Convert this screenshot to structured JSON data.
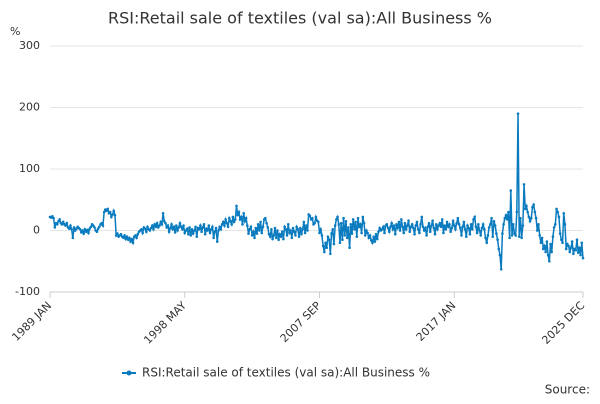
{
  "chart_data": {
    "type": "line",
    "title": "RSI:Retail sale of textiles (val sa):All Business %",
    "y_label": "%",
    "source": "Source:",
    "categories": [
      "1989 JAN",
      null,
      null,
      null,
      null,
      null,
      null,
      null,
      null,
      null,
      null,
      null,
      null,
      null,
      null,
      null,
      null,
      null,
      null,
      null,
      null,
      null,
      null,
      null,
      null,
      null,
      null,
      null,
      null,
      null,
      null,
      null,
      null,
      null,
      null,
      null,
      null,
      null,
      null,
      null,
      null,
      null,
      null,
      null,
      null,
      null,
      null,
      null,
      null,
      null,
      null,
      null,
      null,
      null,
      null,
      null,
      null,
      null,
      null,
      null,
      null,
      null,
      null,
      null,
      null,
      null,
      null,
      null,
      null,
      null,
      null,
      null,
      null,
      null,
      null,
      null,
      null,
      null,
      null,
      null,
      null,
      null,
      null,
      null,
      null,
      null,
      null,
      null,
      null,
      null,
      null,
      null,
      null,
      null,
      null,
      null,
      null,
      null,
      null,
      null,
      null,
      null,
      null,
      null,
      null,
      null,
      null,
      null,
      null,
      null,
      null,
      null,
      "1998 MAY",
      null,
      null,
      null,
      null,
      null,
      null,
      null,
      null,
      null,
      null,
      null,
      null,
      null,
      null,
      null,
      null,
      null,
      null,
      null,
      null,
      null,
      null,
      null,
      null,
      null,
      null,
      null,
      null,
      null,
      null,
      null,
      null,
      null,
      null,
      null,
      null,
      null,
      null,
      null,
      null,
      null,
      null,
      null,
      null,
      null,
      null,
      null,
      null,
      null,
      null,
      null,
      null,
      null,
      null,
      null,
      null,
      null,
      null,
      null,
      null,
      null,
      null,
      null,
      null,
      null,
      null,
      null,
      null,
      null,
      null,
      null,
      null,
      null,
      null,
      null,
      null,
      null,
      null,
      null,
      null,
      null,
      null,
      null,
      null,
      null,
      null,
      null,
      null,
      null,
      null,
      null,
      null,
      null,
      null,
      null,
      null,
      null,
      null,
      null,
      null,
      null,
      null,
      null,
      null,
      null,
      null,
      null,
      null,
      null,
      null,
      null,
      "2007 SEP",
      null,
      null,
      null,
      null,
      null,
      null,
      null,
      null,
      null,
      null,
      null,
      null,
      null,
      null,
      null,
      null,
      null,
      null,
      null,
      null,
      null,
      null,
      null,
      null,
      null,
      null,
      null,
      null,
      null,
      null,
      null,
      null,
      null,
      null,
      null,
      null,
      null,
      null,
      null,
      null,
      null,
      null,
      null,
      null,
      null,
      null,
      null,
      null,
      null,
      null,
      null,
      null,
      null,
      null,
      null,
      null,
      null,
      null,
      null,
      null,
      null,
      null,
      null,
      null,
      null,
      null,
      null,
      null,
      null,
      null,
      null,
      null,
      null,
      null,
      null,
      null,
      null,
      null,
      null,
      null,
      null,
      null,
      null,
      null,
      null,
      null,
      null,
      null,
      null,
      null,
      null,
      null,
      null,
      null,
      null,
      null,
      null,
      null,
      null,
      null,
      null,
      null,
      null,
      null,
      null,
      null,
      null,
      null,
      null,
      null,
      null,
      "2017 JAN",
      null,
      null,
      null,
      null,
      null,
      null,
      null,
      null,
      null,
      null,
      null,
      null,
      null,
      null,
      null,
      null,
      null,
      null,
      null,
      null,
      null,
      null,
      null,
      null,
      null,
      null,
      null,
      null,
      null,
      null,
      null,
      null,
      null,
      null,
      null,
      null,
      null,
      null,
      null,
      null,
      null,
      null,
      null,
      null,
      null,
      null,
      null,
      null,
      null,
      null,
      null,
      null,
      null,
      null,
      null,
      null,
      null,
      null,
      null,
      null,
      null,
      null,
      null,
      null,
      null,
      null,
      null,
      null,
      null,
      null,
      null,
      null,
      null,
      null,
      null,
      null,
      null,
      null,
      null,
      null,
      null,
      null,
      null,
      null,
      null,
      null,
      null,
      null,
      null,
      null,
      null,
      null,
      null,
      null,
      null,
      null,
      null,
      null,
      null,
      null,
      null,
      null,
      null,
      null,
      null,
      null,
      "2025 DEC"
    ],
    "series": [
      {
        "name": "RSI:Retail sale of textiles (val sa):All Business %",
        "color": "#0a7bbf",
        "values": [
          22,
          21,
          23,
          20,
          5,
          12,
          10,
          15,
          18,
          12,
          10,
          14,
          10,
          8,
          12,
          5,
          3,
          8,
          2,
          -12,
          5,
          0,
          3,
          6,
          4,
          2,
          -3,
          0,
          -5,
          2,
          -2,
          1,
          -4,
          3,
          6,
          10,
          8,
          5,
          0,
          -2,
          3,
          6,
          10,
          12,
          8,
          30,
          34,
          32,
          35,
          28,
          30,
          22,
          26,
          32,
          25,
          -8,
          -5,
          -10,
          -8,
          -6,
          -10,
          -12,
          -8,
          -14,
          -10,
          -15,
          -12,
          -18,
          -14,
          -20,
          -10,
          -8,
          -12,
          -6,
          -2,
          0,
          2,
          -4,
          5,
          3,
          -2,
          6,
          2,
          0,
          4,
          8,
          2,
          10,
          6,
          12,
          5,
          8,
          14,
          10,
          28,
          15,
          12,
          5,
          8,
          -2,
          4,
          10,
          2,
          6,
          -3,
          8,
          0,
          5,
          12,
          6,
          2,
          8,
          -4,
          0,
          3,
          -6,
          5,
          -8,
          2,
          -5,
          0,
          6,
          -10,
          4,
          2,
          8,
          -2,
          5,
          10,
          -6,
          3,
          0,
          8,
          -4,
          2,
          6,
          -12,
          -2,
          4,
          -18,
          0,
          6,
          2,
          10,
          14,
          8,
          18,
          12,
          6,
          20,
          15,
          10,
          22,
          14,
          18,
          40,
          25,
          30,
          18,
          22,
          10,
          28,
          15,
          20,
          8,
          -5,
          2,
          6,
          -8,
          -2,
          -12,
          4,
          -5,
          10,
          0,
          14,
          -4,
          6,
          18,
          20,
          12,
          5,
          -6,
          -10,
          2,
          -14,
          -8,
          4,
          -12,
          0,
          -15,
          -6,
          -10,
          -2,
          -14,
          6,
          2,
          -8,
          10,
          -4,
          0,
          -12,
          4,
          -2,
          -8,
          6,
          2,
          -10,
          4,
          -6,
          2,
          14,
          -4,
          8,
          0,
          26,
          24,
          18,
          20,
          10,
          12,
          22,
          16,
          14,
          -4,
          2,
          -8,
          -25,
          -35,
          -20,
          -28,
          -10,
          -15,
          -38,
          -5,
          2,
          -22,
          8,
          18,
          22,
          10,
          -20,
          12,
          -15,
          20,
          -8,
          15,
          -12,
          5,
          -28,
          10,
          -5,
          18,
          2,
          14,
          -10,
          20,
          6,
          10,
          -4,
          22,
          12,
          -8,
          0,
          -4,
          -12,
          -8,
          -16,
          -20,
          -10,
          -18,
          -6,
          -14,
          -2,
          4,
          0,
          2,
          6,
          -4,
          8,
          10,
          4,
          -2,
          6,
          12,
          2,
          8,
          -6,
          10,
          4,
          14,
          0,
          18,
          6,
          -4,
          12,
          2,
          8,
          16,
          -2,
          6,
          10,
          4,
          -6,
          8,
          14,
          2,
          -4,
          10,
          22,
          6,
          0,
          4,
          -8,
          6,
          12,
          -2,
          8,
          16,
          4,
          -6,
          10,
          2,
          8,
          12,
          6,
          18,
          -4,
          8,
          2,
          14,
          6,
          10,
          -2,
          4,
          16,
          8,
          2,
          12,
          20,
          10,
          4,
          -8,
          6,
          14,
          2,
          -10,
          8,
          4,
          -6,
          10,
          2,
          18,
          22,
          6,
          -4,
          10,
          0,
          -8,
          4,
          10,
          2,
          -12,
          -20,
          -8,
          5,
          10,
          20,
          -10,
          15,
          8,
          -5,
          -15,
          -30,
          -40,
          -63,
          -5,
          10,
          20,
          25,
          18,
          30,
          -12,
          65,
          -8,
          10,
          -5,
          -8,
          30,
          190,
          -10,
          20,
          -12,
          8,
          75,
          35,
          40,
          30,
          22,
          15,
          20,
          38,
          42,
          30,
          20,
          0,
          10,
          -8,
          -20,
          -12,
          -30,
          -25,
          -35,
          -18,
          -40,
          -50,
          -22,
          -35,
          -10,
          5,
          10,
          35,
          30,
          22,
          -5,
          -15,
          -20,
          28,
          10,
          -30,
          -22,
          -25,
          -35,
          -28,
          -18,
          -38,
          -30,
          -32,
          -15,
          -36,
          -28,
          -40,
          -20,
          -45
        ]
      }
    ],
    "ylim": [
      -100,
      300
    ],
    "yticks": [
      -100,
      0,
      100,
      200,
      300
    ],
    "grid": true,
    "legend": "bottom"
  }
}
